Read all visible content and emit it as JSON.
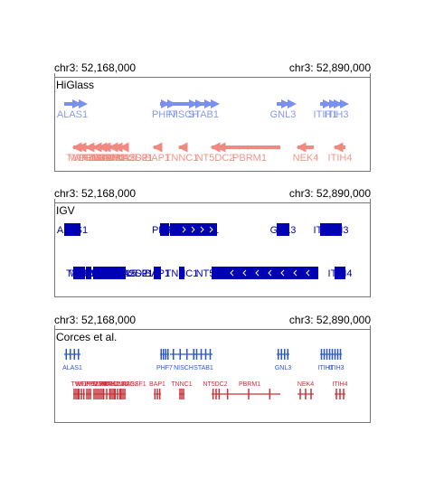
{
  "tracks": [
    {
      "title": "HiGlass",
      "range_start": "chr3: 52,168,000",
      "range_end": "chr3: 52,890,000",
      "style": "higlass",
      "plus_color": "#7b8ff0",
      "minus_color": "#f08a80",
      "plus_genes": [
        "ALAS1",
        "PHF7",
        "NISCH",
        "STAB1",
        "GNL3",
        "ITIH1",
        "ITIH3"
      ],
      "minus_genes": [
        "TWF2",
        "WDR82",
        "PPM1M",
        "TLR9",
        "GLYCTK",
        "DNAH1",
        "TMEM115",
        "CACNA2D2",
        "RASSF1",
        "BAP1",
        "TNNC1",
        "NT5DC2",
        "PBRM1",
        "NEK4",
        "ITIH4"
      ]
    },
    {
      "title": "IGV",
      "range_start": "chr3: 52,168,000",
      "range_end": "chr3: 52,890,000",
      "style": "igv",
      "plus_color": "#0000b4",
      "minus_color": "#0000b4",
      "plus_genes": [
        "ALAS1",
        "PHF7",
        "NISCH",
        "STAB1",
        "GNL3",
        "ITIH1",
        "ITIH3"
      ],
      "minus_genes": [
        "TWF2",
        "WDR82",
        "PPM1M",
        "TLR9",
        "GLYCTK",
        "DNAH1",
        "TMEM115",
        "CACNA2D2",
        "RASSF1",
        "BAP1",
        "TNNC1",
        "NT5DC2",
        "ITIH4"
      ]
    },
    {
      "title": "Corces et al.",
      "range_start": "chr3: 52,168,000",
      "range_end": "chr3: 52,890,000",
      "style": "corces",
      "plus_color": "#2b56c9",
      "minus_color": "#c8323a",
      "plus_genes": [
        "ALAS1",
        "PHF7",
        "NISCH",
        "STAB1",
        "GNL3",
        "ITIH1",
        "ITIH3"
      ],
      "minus_genes": [
        "TWF2",
        "WDR82",
        "PPM1M",
        "TLR9",
        "GLYCTK",
        "DNAH1",
        "TMEM115",
        "CACNA2D2",
        "RASSF1",
        "BAP1",
        "TNNC1",
        "NT5DC2",
        "PBRM1",
        "NEK4",
        "ITIH4"
      ]
    }
  ]
}
